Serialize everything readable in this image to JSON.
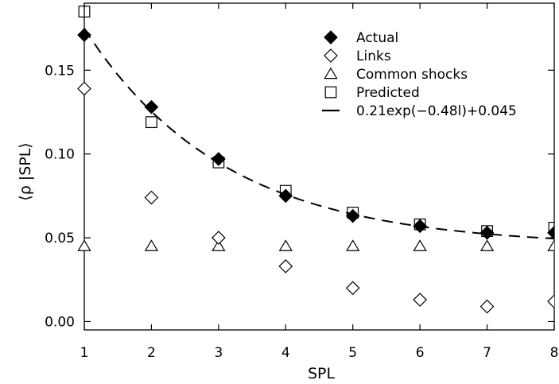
{
  "chart_data": {
    "type": "scatter",
    "xlabel": "SPL",
    "ylabel": "⟨ρ |SPL⟩",
    "xlim": [
      1,
      8
    ],
    "ylim": [
      -0.005,
      0.19
    ],
    "xticks": [
      1,
      2,
      3,
      4,
      5,
      6,
      7,
      8
    ],
    "yticks": [
      0.0,
      0.05,
      0.1,
      0.15
    ],
    "ytick_labels": [
      "0.00",
      "0.05",
      "0.10",
      "0.15"
    ],
    "grid": false,
    "legend_position": "top-right",
    "series": [
      {
        "name": "Actual",
        "marker": "filled-diamond",
        "x": [
          1,
          2,
          3,
          4,
          5,
          6,
          7,
          8
        ],
        "y": [
          0.171,
          0.128,
          0.097,
          0.075,
          0.063,
          0.057,
          0.053,
          0.053
        ]
      },
      {
        "name": "Links",
        "marker": "open-diamond",
        "x": [
          1,
          2,
          3,
          4,
          5,
          6,
          7,
          8
        ],
        "y": [
          0.139,
          0.074,
          0.05,
          0.033,
          0.02,
          0.013,
          0.009,
          0.012
        ]
      },
      {
        "name": "Common shocks",
        "marker": "open-triangle",
        "x": [
          1,
          2,
          3,
          4,
          5,
          6,
          7,
          8
        ],
        "y": [
          0.045,
          0.045,
          0.045,
          0.045,
          0.045,
          0.045,
          0.045,
          0.045
        ]
      },
      {
        "name": "Predicted",
        "marker": "open-square",
        "x": [
          1,
          2,
          3,
          4,
          5,
          6,
          7,
          8
        ],
        "y": [
          0.185,
          0.119,
          0.095,
          0.078,
          0.065,
          0.058,
          0.054,
          0.056
        ]
      },
      {
        "name": "0.21exp(−0.48l)+0.045",
        "marker": "dashed-line",
        "fit": {
          "a": 0.21,
          "b": -0.48,
          "c": 0.045
        }
      }
    ]
  }
}
